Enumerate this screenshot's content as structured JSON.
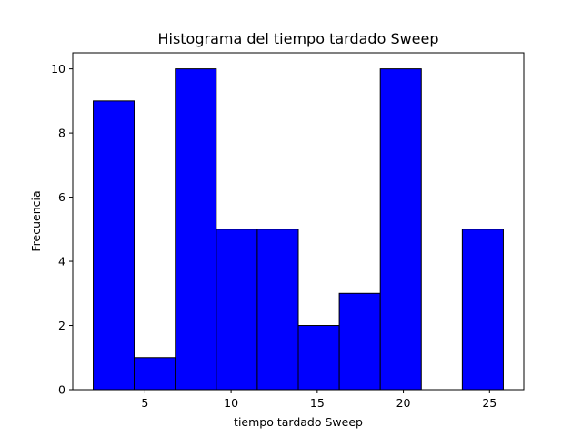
{
  "chart_data": {
    "type": "bar",
    "title": "Histograma del tiempo tardado Sweep",
    "xlabel": "tiempo tardado Sweep",
    "ylabel": "Frecuencia",
    "bin_edges": [
      2.0,
      4.38,
      6.76,
      9.14,
      11.52,
      13.9,
      16.28,
      18.66,
      21.04,
      23.42,
      25.8
    ],
    "values": [
      9,
      1,
      10,
      5,
      5,
      2,
      3,
      10,
      0,
      5
    ],
    "xlim": [
      0.81,
      26.99
    ],
    "ylim": [
      0,
      10.5
    ],
    "xticks": [
      5,
      10,
      15,
      20,
      25
    ],
    "yticks": [
      0,
      2,
      4,
      6,
      8,
      10
    ],
    "bar_color": "#0000ff",
    "edge_color": "#000000",
    "grid": false
  }
}
